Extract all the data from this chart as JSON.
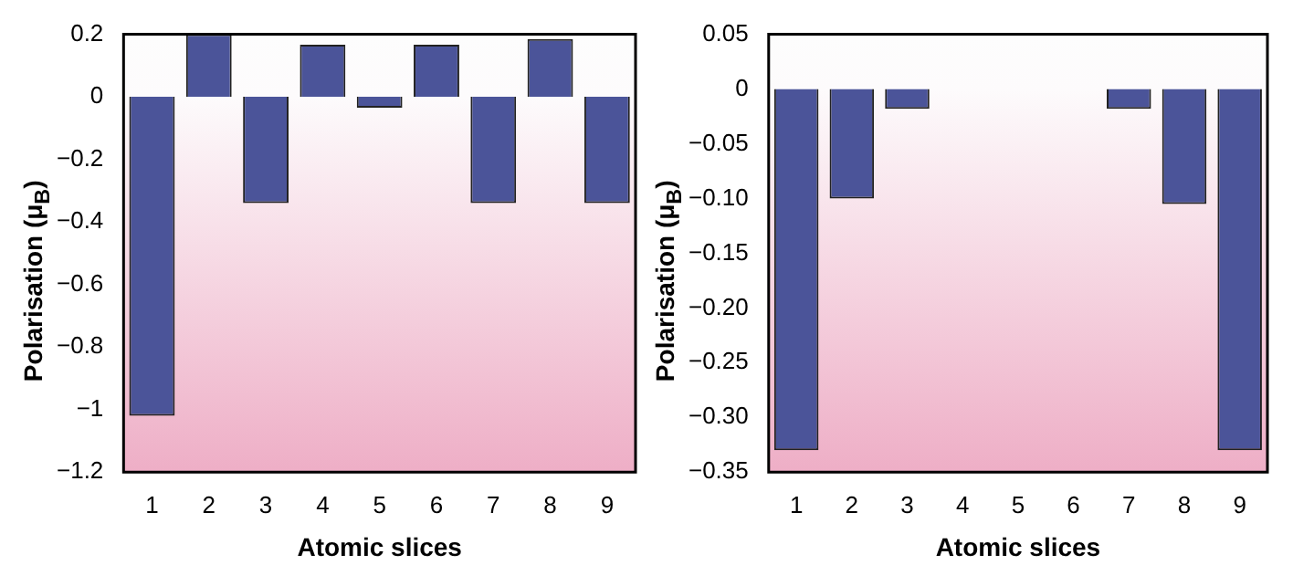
{
  "chart_data": [
    {
      "type": "bar",
      "categories": [
        "1",
        "2",
        "3",
        "4",
        "5",
        "6",
        "7",
        "8",
        "9"
      ],
      "values": [
        -1.02,
        0.2,
        -0.34,
        0.167,
        -0.035,
        0.167,
        -0.34,
        0.185,
        -0.34
      ],
      "color": "#4b5499",
      "xlabel": "Atomic slices",
      "ylabel": "Polarisation (μ$_{B}$)",
      "ylim": [
        -1.2,
        0.2
      ],
      "yticks": [
        {
          "value": -1.2,
          "label": "−1.2"
        },
        {
          "value": -1,
          "label": "−1"
        },
        {
          "value": -0.8,
          "label": "−0.8"
        },
        {
          "value": -0.6,
          "label": "−0.6"
        },
        {
          "value": -0.4,
          "label": "−0.4"
        },
        {
          "value": -0.2,
          "label": "−0.2"
        },
        0,
        0.2
      ],
      "grid": false
    },
    {
      "type": "bar",
      "categories": [
        "1",
        "2",
        "3",
        "4",
        "5",
        "6",
        "7",
        "8",
        "9"
      ],
      "values": [
        -0.33,
        -0.1,
        -0.018,
        0,
        0,
        0,
        -0.018,
        -0.105,
        -0.33
      ],
      "color": "#4b5499",
      "xlabel": "Atomic slices",
      "ylabel": "Polarisation (μ$_{B}$)",
      "ylim": [
        -0.35,
        0.05
      ],
      "yticks": [
        {
          "value": -0.35,
          "label": "−0.35"
        },
        {
          "value": -0.3,
          "label": "−0.30"
        },
        {
          "value": -0.25,
          "label": "−0.25"
        },
        {
          "value": -0.2,
          "label": "−0.20"
        },
        {
          "value": -0.15,
          "label": "−0.15"
        },
        {
          "value": -0.1,
          "label": "−0.10"
        },
        {
          "value": -0.05,
          "label": "−0.05"
        },
        0,
        0.05
      ],
      "grid": false
    }
  ]
}
